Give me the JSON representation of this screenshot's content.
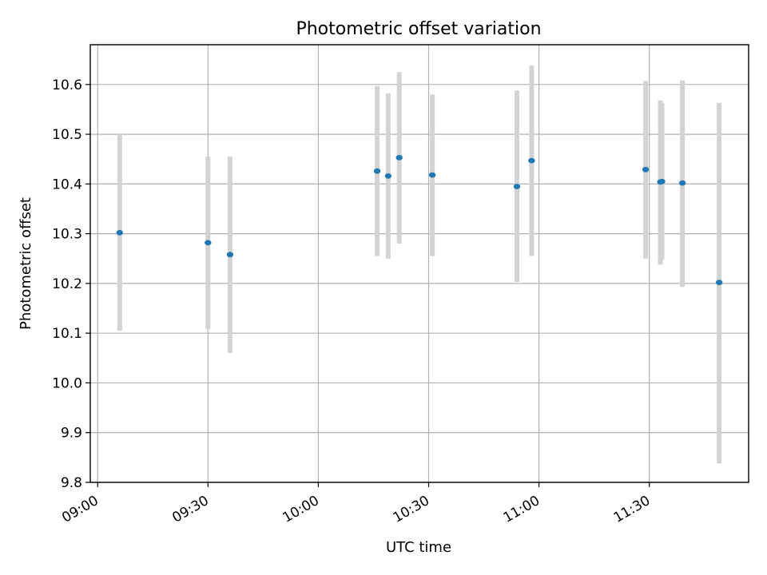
{
  "chart_data": {
    "type": "scatter",
    "title": "Photometric offset variation",
    "xlabel": "UTC time",
    "ylabel": "Photometric offset",
    "x_ticks": [
      "09:00",
      "09:30",
      "10:00",
      "10:30",
      "11:00",
      "11:30"
    ],
    "y_ticks": [
      "9.8",
      "9.9",
      "10.0",
      "10.1",
      "10.2",
      "10.3",
      "10.4",
      "10.5",
      "10.6"
    ],
    "xlim": [
      "08:58",
      "11:57"
    ],
    "ylim": [
      9.8,
      10.68
    ],
    "grid": true,
    "error_bar_color": "#d3d3d3",
    "marker_color": "#1f77b4",
    "points": [
      {
        "x": "09:06",
        "y": 10.302,
        "ymin": 10.105,
        "ymax": 10.5
      },
      {
        "x": "09:30",
        "y": 10.282,
        "ymin": 10.108,
        "ymax": 10.455
      },
      {
        "x": "09:36",
        "y": 10.258,
        "ymin": 10.06,
        "ymax": 10.455
      },
      {
        "x": "10:16",
        "y": 10.426,
        "ymin": 10.255,
        "ymax": 10.597
      },
      {
        "x": "10:19",
        "y": 10.416,
        "ymin": 10.25,
        "ymax": 10.582
      },
      {
        "x": "10:22",
        "y": 10.453,
        "ymin": 10.28,
        "ymax": 10.625
      },
      {
        "x": "10:31",
        "y": 10.418,
        "ymin": 10.255,
        "ymax": 10.58
      },
      {
        "x": "10:54",
        "y": 10.395,
        "ymin": 10.203,
        "ymax": 10.588
      },
      {
        "x": "10:58",
        "y": 10.447,
        "ymin": 10.255,
        "ymax": 10.638
      },
      {
        "x": "11:29",
        "y": 10.429,
        "ymin": 10.25,
        "ymax": 10.607
      },
      {
        "x": "11:33",
        "y": 10.404,
        "ymin": 10.238,
        "ymax": 10.568
      },
      {
        "x": "11:33",
        "y": 10.405,
        "ymin": 10.248,
        "ymax": 10.563
      },
      {
        "x": "11:39",
        "y": 10.402,
        "ymin": 10.193,
        "ymax": 10.608
      },
      {
        "x": "11:49",
        "y": 10.202,
        "ymin": 9.838,
        "ymax": 10.563
      }
    ]
  }
}
